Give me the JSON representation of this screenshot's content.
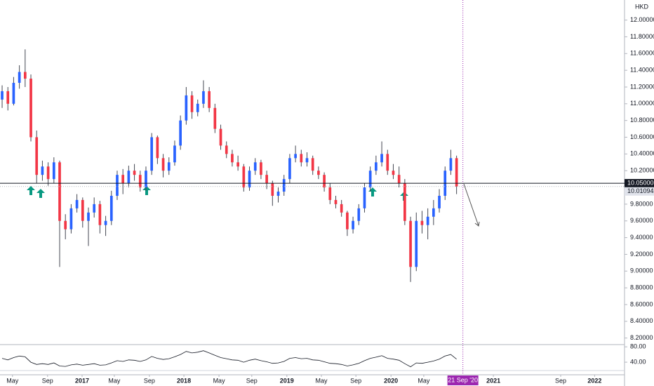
{
  "chart_data": {
    "type": "candlestick",
    "currency": "HKD",
    "up_color": "#2962ff",
    "down_color": "#f23645",
    "candles": [
      [
        11.05,
        11.22,
        10.95,
        11.15
      ],
      [
        11.15,
        11.2,
        10.92,
        11.0
      ],
      [
        11.0,
        11.32,
        10.98,
        11.25
      ],
      [
        11.25,
        11.46,
        11.18,
        11.38
      ],
      [
        11.38,
        11.65,
        11.2,
        11.3
      ],
      [
        11.3,
        11.35,
        10.55,
        10.6
      ],
      [
        10.6,
        10.68,
        10.05,
        10.15
      ],
      [
        10.15,
        10.32,
        10.08,
        10.25
      ],
      [
        10.25,
        10.3,
        10.02,
        10.1
      ],
      [
        10.1,
        10.36,
        10.05,
        10.3
      ],
      [
        10.3,
        10.32,
        9.05,
        9.6
      ],
      [
        9.6,
        9.68,
        9.38,
        9.5
      ],
      [
        9.5,
        9.8,
        9.45,
        9.75
      ],
      [
        9.75,
        9.92,
        9.7,
        9.85
      ],
      [
        9.85,
        9.88,
        9.52,
        9.6
      ],
      [
        9.6,
        9.76,
        9.3,
        9.7
      ],
      [
        9.7,
        9.88,
        9.64,
        9.8
      ],
      [
        9.8,
        9.84,
        9.45,
        9.55
      ],
      [
        9.55,
        9.66,
        9.42,
        9.6
      ],
      [
        9.6,
        9.96,
        9.55,
        9.9
      ],
      [
        9.9,
        10.2,
        9.85,
        10.15
      ],
      [
        10.15,
        10.22,
        9.92,
        10.05
      ],
      [
        10.05,
        10.26,
        10.0,
        10.2
      ],
      [
        10.2,
        10.28,
        10.08,
        10.15
      ],
      [
        10.15,
        10.2,
        9.95,
        10.0
      ],
      [
        10.0,
        10.25,
        9.96,
        10.2
      ],
      [
        10.2,
        10.65,
        10.15,
        10.6
      ],
      [
        10.6,
        10.62,
        10.28,
        10.35
      ],
      [
        10.35,
        10.4,
        10.12,
        10.2
      ],
      [
        10.2,
        10.36,
        10.15,
        10.3
      ],
      [
        10.3,
        10.56,
        10.26,
        10.5
      ],
      [
        10.5,
        10.86,
        10.45,
        10.8
      ],
      [
        10.8,
        11.2,
        10.75,
        11.1
      ],
      [
        11.1,
        11.15,
        10.82,
        10.9
      ],
      [
        10.9,
        11.05,
        10.85,
        11.0
      ],
      [
        11.0,
        11.28,
        10.95,
        11.15
      ],
      [
        11.15,
        11.2,
        10.9,
        10.95
      ],
      [
        10.95,
        11.0,
        10.65,
        10.7
      ],
      [
        10.7,
        10.75,
        10.45,
        10.5
      ],
      [
        10.5,
        10.55,
        10.35,
        10.4
      ],
      [
        10.4,
        10.45,
        10.25,
        10.3
      ],
      [
        10.3,
        10.38,
        10.2,
        10.25
      ],
      [
        10.25,
        10.28,
        9.95,
        10.0
      ],
      [
        10.0,
        10.25,
        9.96,
        10.2
      ],
      [
        10.2,
        10.35,
        10.15,
        10.3
      ],
      [
        10.3,
        10.33,
        10.1,
        10.15
      ],
      [
        10.15,
        10.2,
        9.98,
        10.05
      ],
      [
        10.05,
        10.08,
        9.78,
        9.9
      ],
      [
        9.9,
        10.0,
        9.82,
        9.95
      ],
      [
        9.95,
        10.15,
        9.9,
        10.1
      ],
      [
        10.1,
        10.4,
        10.05,
        10.35
      ],
      [
        10.35,
        10.5,
        10.3,
        10.4
      ],
      [
        10.4,
        10.45,
        10.25,
        10.3
      ],
      [
        10.3,
        10.42,
        10.25,
        10.35
      ],
      [
        10.35,
        10.38,
        10.15,
        10.2
      ],
      [
        10.2,
        10.25,
        10.1,
        10.15
      ],
      [
        10.15,
        10.18,
        9.95,
        10.0
      ],
      [
        10.0,
        10.05,
        9.8,
        9.85
      ],
      [
        9.85,
        9.9,
        9.75,
        9.8
      ],
      [
        9.8,
        9.85,
        9.65,
        9.7
      ],
      [
        9.7,
        9.72,
        9.42,
        9.5
      ],
      [
        9.5,
        9.65,
        9.45,
        9.6
      ],
      [
        9.6,
        9.8,
        9.55,
        9.75
      ],
      [
        9.75,
        10.05,
        9.7,
        10.0
      ],
      [
        10.0,
        10.25,
        9.95,
        10.2
      ],
      [
        10.2,
        10.38,
        10.15,
        10.3
      ],
      [
        10.3,
        10.55,
        10.25,
        10.4
      ],
      [
        10.4,
        10.45,
        10.15,
        10.2
      ],
      [
        10.2,
        10.28,
        10.1,
        10.15
      ],
      [
        10.15,
        10.25,
        10.0,
        10.05
      ],
      [
        10.05,
        10.1,
        9.55,
        9.6
      ],
      [
        9.6,
        9.65,
        8.87,
        9.05
      ],
      [
        9.05,
        9.7,
        9.0,
        9.6
      ],
      [
        9.6,
        9.72,
        9.45,
        9.55
      ],
      [
        9.55,
        9.75,
        9.38,
        9.65
      ],
      [
        9.65,
        9.85,
        9.55,
        9.75
      ],
      [
        9.75,
        9.98,
        9.7,
        9.9
      ],
      [
        9.9,
        10.25,
        9.85,
        10.2
      ],
      [
        10.2,
        10.45,
        10.15,
        10.35
      ],
      [
        10.35,
        10.38,
        9.92,
        10.01094
      ]
    ],
    "xlim": [
      -0.37,
      108.2
    ],
    "xticks": [
      {
        "value": 1.8,
        "label": "May"
      },
      {
        "value": 7.9,
        "label": "Sep"
      },
      {
        "value": 13.9,
        "label": "2017"
      },
      {
        "value": 19.5,
        "label": "May"
      },
      {
        "value": 25.6,
        "label": "Sep"
      },
      {
        "value": 31.6,
        "label": "2018"
      },
      {
        "value": 37.7,
        "label": "May"
      },
      {
        "value": 43.4,
        "label": "Sep"
      },
      {
        "value": 49.5,
        "label": "2019"
      },
      {
        "value": 55.5,
        "label": "May"
      },
      {
        "value": 61.5,
        "label": "Sep"
      },
      {
        "value": 67.6,
        "label": "2020"
      },
      {
        "value": 73.3,
        "label": "May"
      },
      {
        "value": 85.4,
        "label": "2021"
      },
      {
        "value": 97.1,
        "label": "Sep"
      },
      {
        "value": 103,
        "label": "2022"
      }
    ],
    "crosshair": {
      "value": 80.1,
      "label": "21 Sep '20"
    },
    "ylim": [
      8.13,
      12.24
    ],
    "yticks": [
      {
        "value": 8.2,
        "label": "8.20000"
      },
      {
        "value": 8.4,
        "label": "8.40000"
      },
      {
        "value": 8.6,
        "label": "8.60000"
      },
      {
        "value": 8.8,
        "label": "8.80000"
      },
      {
        "value": 9.0,
        "label": "9.00000"
      },
      {
        "value": 9.2,
        "label": "9.20000"
      },
      {
        "value": 9.4,
        "label": "9.40000"
      },
      {
        "value": 9.6,
        "label": "9.60000"
      },
      {
        "value": 9.8,
        "label": "9.80000"
      },
      {
        "value": 10.2,
        "label": "10.20000"
      },
      {
        "value": 10.4,
        "label": "10.40000"
      },
      {
        "value": 10.6,
        "label": "10.60000"
      },
      {
        "value": 10.8,
        "label": "10.80000"
      },
      {
        "value": 11.0,
        "label": "11.00000"
      },
      {
        "value": 11.2,
        "label": "11.20000"
      },
      {
        "value": 11.4,
        "label": "11.40000"
      },
      {
        "value": 11.6,
        "label": "11.60000"
      },
      {
        "value": 11.8,
        "label": "11.80000"
      },
      {
        "value": 12.0,
        "label": "12.00000"
      }
    ],
    "hline": {
      "value": 10.05,
      "label": "10.05000"
    },
    "rsi": {
      "values": [
        50,
        46,
        52,
        56,
        54,
        40,
        34,
        36,
        34,
        38,
        30,
        29,
        33,
        35,
        32,
        34,
        36,
        32,
        33,
        38,
        44,
        42,
        46,
        45,
        42,
        46,
        55,
        50,
        47,
        49,
        54,
        60,
        68,
        64,
        66,
        70,
        64,
        58,
        52,
        49,
        46,
        45,
        40,
        45,
        48,
        44,
        41,
        37,
        38,
        42,
        50,
        52,
        49,
        50,
        46,
        45,
        41,
        37,
        36,
        34,
        30,
        33,
        37,
        44,
        50,
        53,
        57,
        50,
        48,
        45,
        36,
        28,
        38,
        37,
        40,
        43,
        48,
        56,
        60,
        48
      ],
      "ylim": [
        9,
        84
      ],
      "yticks": [
        {
          "value": 40,
          "label": "40.00"
        },
        {
          "value": 80,
          "label": "80.00"
        }
      ]
    }
  }
}
